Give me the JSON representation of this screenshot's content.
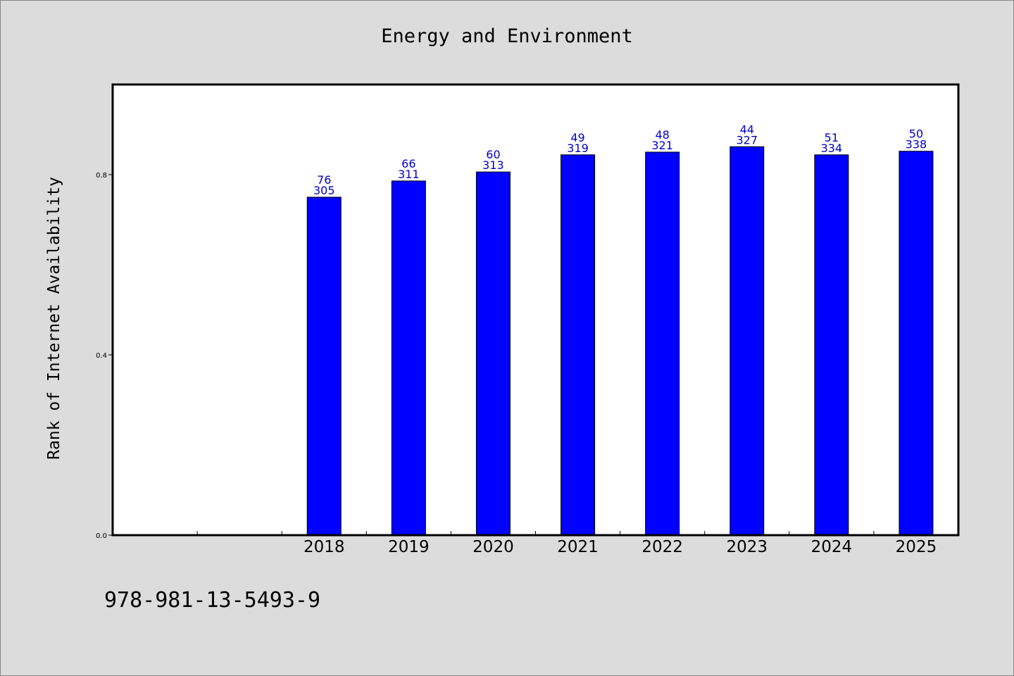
{
  "chart_data": {
    "type": "bar",
    "title": "Energy and Environment",
    "xlabel": "",
    "ylabel": "Rank of Internet Availability",
    "categories": [
      "",
      "",
      "2018",
      "2019",
      "2020",
      "2021",
      "2022",
      "2023",
      "2024",
      "2025"
    ],
    "series": [
      {
        "values": [
          null,
          null,
          0.75,
          0.786,
          0.806,
          0.844,
          0.85,
          0.862,
          0.844,
          0.852
        ],
        "color": "#0000ff",
        "labels_top": [
          "",
          "",
          "76",
          "66",
          "60",
          "49",
          "48",
          "44",
          "51",
          "50"
        ],
        "labels_bottom": [
          "",
          "",
          "305",
          "311",
          "313",
          "319",
          "321",
          "327",
          "334",
          "338"
        ]
      }
    ],
    "yticks": [
      "0.0",
      "0.4",
      "0.8"
    ],
    "ylim": [
      0,
      1.0
    ],
    "grid": false,
    "legend": "none"
  },
  "footer": {
    "isbn": "978-981-13-5493-9"
  }
}
